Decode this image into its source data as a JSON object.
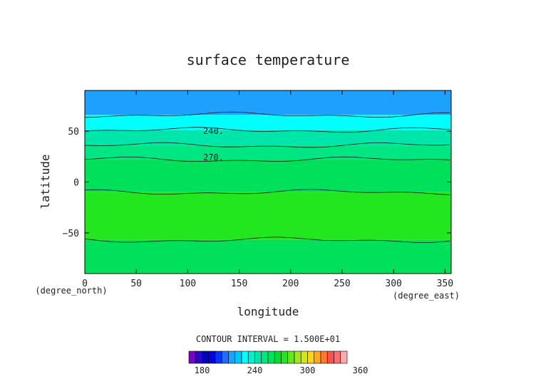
{
  "chart_data": {
    "type": "heatmap",
    "title": "surface temperature",
    "xlabel": "longitude",
    "ylabel": "latitude",
    "x_unit": "(degree_east)",
    "y_unit": "(degree_north)",
    "xlim": [
      0,
      356
    ],
    "ylim": [
      -90,
      90
    ],
    "x_ticks": [
      0,
      50,
      100,
      150,
      200,
      250,
      300,
      350
    ],
    "y_ticks": [
      -50,
      0,
      50
    ],
    "contour_interval_text": "CONTOUR INTERVAL = 1.500E+01",
    "contour_labels": [
      {
        "text": "240.",
        "lon": 125,
        "lat": 50
      },
      {
        "text": "270.",
        "lon": 125,
        "lat": 24
      }
    ],
    "colorbar": {
      "tick_labels": [
        "180",
        "240",
        "300",
        "360"
      ],
      "levels_min": 165,
      "levels_step": 7.5,
      "colors": [
        "#7a00cc",
        "#3300cc",
        "#0000b4",
        "#0000e6",
        "#0a32ff",
        "#1e6eff",
        "#1ea0ff",
        "#00c8ff",
        "#00ffff",
        "#00f0d2",
        "#00e6aa",
        "#00e682",
        "#00e05a",
        "#00dc32",
        "#22e61e",
        "#66e61e",
        "#a0e61e",
        "#d2e61e",
        "#ffd21e",
        "#ffaa1e",
        "#ff7a28",
        "#ff5050",
        "#ff6e6e",
        "#ffaaaa"
      ]
    },
    "zone_bands": [
      {
        "lat_from": 90,
        "lat_to": 66,
        "color": "#1ea0ff"
      },
      {
        "lat_from": 66,
        "lat_to": 51,
        "color": "#00ffff"
      },
      {
        "lat_from": 51,
        "lat_to": 36,
        "color": "#00e6aa"
      },
      {
        "lat_from": 36,
        "lat_to": 22,
        "color": "#00e682"
      },
      {
        "lat_from": 22,
        "lat_to": -10,
        "color": "#00e05a"
      },
      {
        "lat_from": -10,
        "lat_to": -57,
        "color": "#22e61e"
      },
      {
        "lat_from": -57,
        "lat_to": -90,
        "color": "#00e05a"
      }
    ],
    "grid": false
  }
}
